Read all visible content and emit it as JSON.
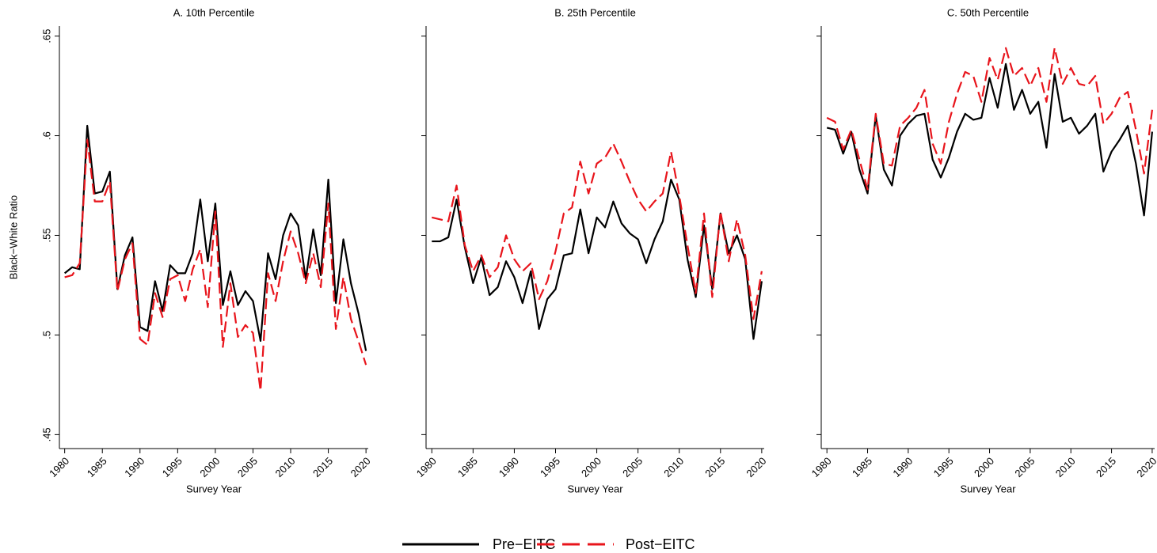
{
  "chart_data": [
    {
      "type": "line",
      "title": "A. 10th Percentile",
      "xlabel": "Survey Year",
      "ylabel": "Black−White Ratio",
      "x": [
        1980,
        1981,
        1982,
        1983,
        1984,
        1985,
        1986,
        1987,
        1988,
        1989,
        1990,
        1991,
        1992,
        1993,
        1994,
        1995,
        1996,
        1997,
        1998,
        1999,
        2000,
        2001,
        2002,
        2003,
        2004,
        2005,
        2006,
        2007,
        2008,
        2009,
        2010,
        2011,
        2012,
        2013,
        2014,
        2015,
        2016,
        2017,
        2018,
        2019,
        2020
      ],
      "series": [
        {
          "name": "Pre−EITC",
          "color": "#000000",
          "dash": false,
          "values": [
            0.531,
            0.534,
            0.533,
            0.605,
            0.571,
            0.572,
            0.582,
            0.523,
            0.54,
            0.549,
            0.504,
            0.502,
            0.527,
            0.512,
            0.535,
            0.531,
            0.531,
            0.541,
            0.568,
            0.537,
            0.566,
            0.515,
            0.532,
            0.515,
            0.522,
            0.517,
            0.497,
            0.541,
            0.528,
            0.55,
            0.561,
            0.555,
            0.528,
            0.553,
            0.53,
            0.578,
            0.516,
            0.548,
            0.526,
            0.511,
            0.492
          ]
        },
        {
          "name": "Post−EITC",
          "color": "#e8141b",
          "dash": true,
          "values": [
            0.529,
            0.53,
            0.536,
            0.598,
            0.567,
            0.567,
            0.577,
            0.522,
            0.538,
            0.546,
            0.498,
            0.495,
            0.521,
            0.509,
            0.528,
            0.53,
            0.517,
            0.533,
            0.543,
            0.514,
            0.562,
            0.494,
            0.526,
            0.499,
            0.505,
            0.501,
            0.472,
            0.531,
            0.517,
            0.537,
            0.552,
            0.541,
            0.526,
            0.541,
            0.524,
            0.566,
            0.503,
            0.529,
            0.508,
            0.497,
            0.485
          ]
        }
      ],
      "xlim": [
        1979.3,
        2020.3
      ],
      "xticks": [
        1980,
        1985,
        1990,
        1995,
        2000,
        2005,
        2010,
        2015,
        2020
      ],
      "ylim": [
        0.443,
        0.655
      ],
      "yticks": [
        {
          "value": 0.45,
          "label": ".45"
        },
        {
          "value": 0.5,
          "label": ".5"
        },
        {
          "value": 0.55,
          "label": ".55"
        },
        {
          "value": 0.6,
          "label": ".6"
        },
        {
          "value": 0.65,
          "label": ".65"
        }
      ]
    },
    {
      "type": "line",
      "title": "B. 25th Percentile",
      "xlabel": "Survey Year",
      "x": [
        1980,
        1981,
        1982,
        1983,
        1984,
        1985,
        1986,
        1987,
        1988,
        1989,
        1990,
        1991,
        1992,
        1993,
        1994,
        1995,
        1996,
        1997,
        1998,
        1999,
        2000,
        2001,
        2002,
        2003,
        2004,
        2005,
        2006,
        2007,
        2008,
        2009,
        2010,
        2011,
        2012,
        2013,
        2014,
        2015,
        2016,
        2017,
        2018,
        2019,
        2020
      ],
      "series": [
        {
          "color": "#000000",
          "dash": false,
          "values": [
            0.547,
            0.547,
            0.549,
            0.568,
            0.544,
            0.526,
            0.539,
            0.52,
            0.524,
            0.537,
            0.529,
            0.516,
            0.532,
            0.503,
            0.518,
            0.523,
            0.54,
            0.541,
            0.563,
            0.541,
            0.559,
            0.554,
            0.567,
            0.556,
            0.551,
            0.548,
            0.536,
            0.548,
            0.557,
            0.578,
            0.568,
            0.538,
            0.519,
            0.555,
            0.523,
            0.561,
            0.541,
            0.55,
            0.538,
            0.498,
            0.527
          ]
        },
        {
          "color": "#e8141b",
          "dash": true,
          "values": [
            0.559,
            0.558,
            0.557,
            0.575,
            0.545,
            0.532,
            0.54,
            0.529,
            0.534,
            0.55,
            0.538,
            0.532,
            0.536,
            0.518,
            0.527,
            0.542,
            0.561,
            0.564,
            0.587,
            0.571,
            0.586,
            0.589,
            0.596,
            0.587,
            0.577,
            0.568,
            0.562,
            0.567,
            0.571,
            0.592,
            0.57,
            0.545,
            0.521,
            0.561,
            0.519,
            0.562,
            0.537,
            0.558,
            0.54,
            0.508,
            0.532
          ]
        }
      ],
      "xlim": [
        1979.3,
        2020.3
      ],
      "xticks": [
        1980,
        1985,
        1990,
        1995,
        2000,
        2005,
        2010,
        2015,
        2020
      ],
      "ylim": [
        0.443,
        0.655
      ],
      "yticks": [
        0.45,
        0.5,
        0.55,
        0.6,
        0.65
      ]
    },
    {
      "type": "line",
      "title": "C. 50th Percentile",
      "xlabel": "Survey Year",
      "x": [
        1980,
        1981,
        1982,
        1983,
        1984,
        1985,
        1986,
        1987,
        1988,
        1989,
        1990,
        1991,
        1992,
        1993,
        1994,
        1995,
        1996,
        1997,
        1998,
        1999,
        2000,
        2001,
        2002,
        2003,
        2004,
        2005,
        2006,
        2007,
        2008,
        2009,
        2010,
        2011,
        2012,
        2013,
        2014,
        2015,
        2016,
        2017,
        2018,
        2019,
        2020
      ],
      "series": [
        {
          "color": "#000000",
          "dash": false,
          "values": [
            0.604,
            0.603,
            0.591,
            0.602,
            0.583,
            0.571,
            0.61,
            0.583,
            0.575,
            0.6,
            0.606,
            0.61,
            0.611,
            0.588,
            0.579,
            0.589,
            0.602,
            0.611,
            0.608,
            0.609,
            0.629,
            0.614,
            0.636,
            0.613,
            0.623,
            0.611,
            0.617,
            0.594,
            0.631,
            0.607,
            0.609,
            0.601,
            0.605,
            0.611,
            0.582,
            0.592,
            0.598,
            0.605,
            0.586,
            0.56,
            0.602
          ]
        },
        {
          "color": "#e8141b",
          "dash": true,
          "values": [
            0.609,
            0.607,
            0.593,
            0.603,
            0.588,
            0.573,
            0.611,
            0.586,
            0.585,
            0.605,
            0.609,
            0.614,
            0.623,
            0.596,
            0.586,
            0.607,
            0.621,
            0.632,
            0.63,
            0.617,
            0.639,
            0.628,
            0.644,
            0.63,
            0.634,
            0.625,
            0.634,
            0.617,
            0.644,
            0.626,
            0.634,
            0.626,
            0.625,
            0.63,
            0.606,
            0.611,
            0.619,
            0.622,
            0.603,
            0.581,
            0.613
          ]
        }
      ],
      "xlim": [
        1979.3,
        2020.3
      ],
      "xticks": [
        1980,
        1985,
        1990,
        1995,
        2000,
        2005,
        2010,
        2015,
        2020
      ],
      "ylim": [
        0.443,
        0.655
      ],
      "yticks": [
        0.45,
        0.5,
        0.55,
        0.6,
        0.65
      ]
    }
  ]
}
